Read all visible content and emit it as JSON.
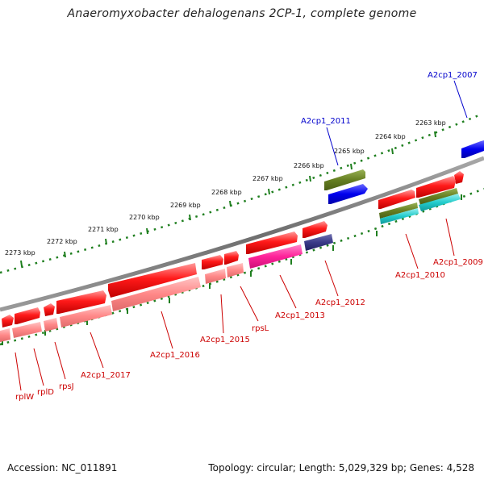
{
  "title": "Anaeromyxobacter dehalogenans 2CP-1, complete genome",
  "footer": {
    "accession": "Accession: NC_011891",
    "summary": "Topology: circular; Length: 5,029,329 bp; Genes: 4,528"
  },
  "colors": {
    "backbone": "#7f7f7f",
    "ruler": "#1f7f1f",
    "label_red": "#cc0000",
    "label_blue": "#0000cc",
    "red": "#ff0000",
    "pink": "#ff8080",
    "olive": "#668822",
    "blue": "#0000ee",
    "magenta": "#ff2299",
    "cyan": "#22cccc",
    "navy": "#2a2a7a"
  },
  "ruler": {
    "unit": "kbp",
    "ticks": [
      {
        "label": "2263 kbp"
      },
      {
        "label": "2264 kbp"
      },
      {
        "label": "2265 kbp"
      },
      {
        "label": "2266 kbp"
      },
      {
        "label": "2267 kbp"
      },
      {
        "label": "2268 kbp"
      },
      {
        "label": "2269 kbp"
      },
      {
        "label": "2270 kbp"
      },
      {
        "label": "2271 kbp"
      },
      {
        "label": "2272 kbp"
      },
      {
        "label": "2273 kbp"
      }
    ]
  },
  "gene_labels": [
    {
      "text": "A2cp1_2007",
      "color": "blue"
    },
    {
      "text": "A2cp1_2011",
      "color": "blue"
    },
    {
      "text": "A2cp1_2009",
      "color": "red"
    },
    {
      "text": "A2cp1_2010",
      "color": "red"
    },
    {
      "text": "A2cp1_2012",
      "color": "red"
    },
    {
      "text": "A2cp1_2013",
      "color": "red"
    },
    {
      "text": "rpsL",
      "color": "red"
    },
    {
      "text": "A2cp1_2015",
      "color": "red"
    },
    {
      "text": "A2cp1_2016",
      "color": "red"
    },
    {
      "text": "A2cp1_2017",
      "color": "red"
    },
    {
      "text": "rpsJ",
      "color": "red"
    },
    {
      "text": "rplD",
      "color": "red"
    },
    {
      "text": "rplW",
      "color": "red"
    }
  ]
}
